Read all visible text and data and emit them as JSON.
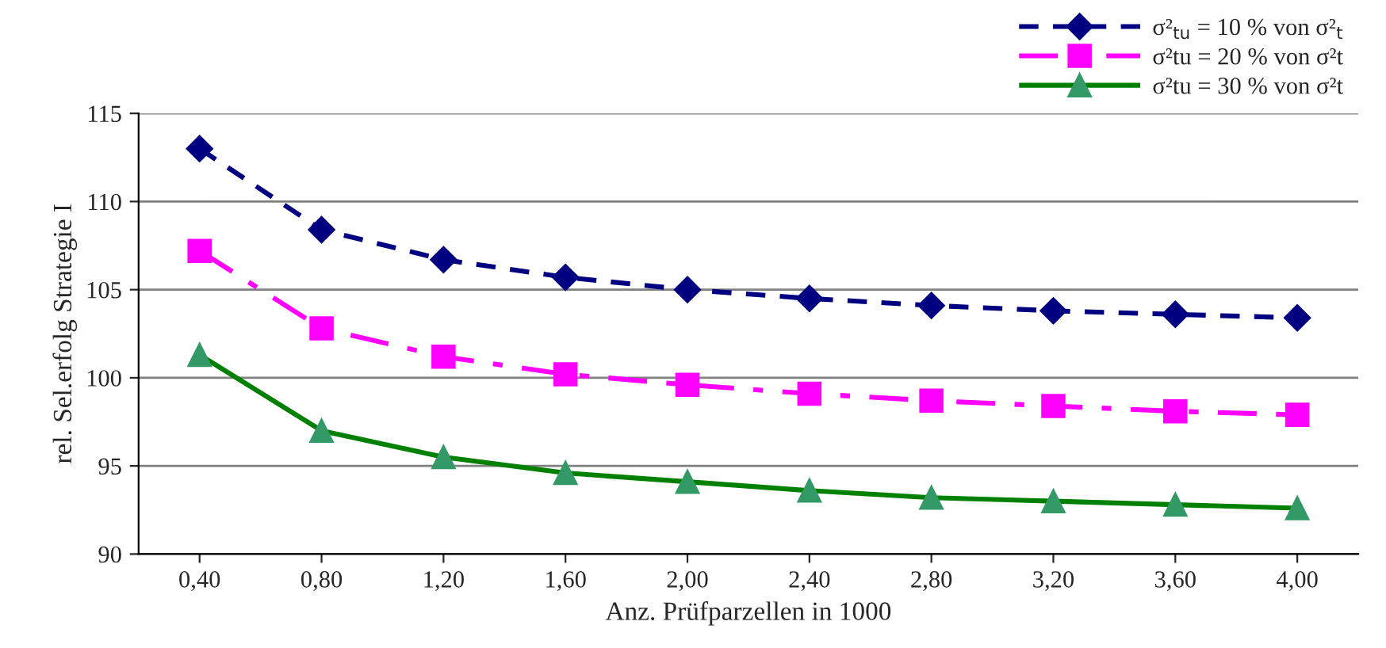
{
  "chart_data": {
    "type": "line",
    "xlabel": "Anz. Prüfparzellen in 1000",
    "ylabel": "rel. Sel.erfolg Strategie I",
    "categories": [
      "0,40",
      "0,80",
      "1,20",
      "1,60",
      "2,00",
      "2,40",
      "2,80",
      "3,20",
      "3,60",
      "4,00"
    ],
    "ylim": [
      90,
      115
    ],
    "yticks": [
      90,
      95,
      100,
      105,
      110,
      115
    ],
    "grid": "y",
    "legend": "top right",
    "series": [
      {
        "name": "σ²$_{tu}$ = 10 % von σ²$_{t}$",
        "color": "#000080",
        "marker": "diamond",
        "line_style": "dashed",
        "values": [
          113.0,
          108.4,
          106.7,
          105.7,
          105.0,
          104.5,
          104.1,
          103.8,
          103.6,
          103.4
        ]
      },
      {
        "name": "σ²tu = 20 % von σ²t",
        "color": "#ff00ff",
        "marker": "square",
        "line_style": "dashdot",
        "values": [
          107.2,
          102.8,
          101.2,
          100.2,
          99.6,
          99.1,
          98.7,
          98.4,
          98.1,
          97.9
        ]
      },
      {
        "name": "σ²tu = 30 % von σ²t",
        "color": "#008000",
        "marker": "triangle",
        "line_style": "solid",
        "values": [
          101.3,
          97.0,
          95.5,
          94.6,
          94.1,
          93.6,
          93.2,
          93.0,
          92.8,
          92.6
        ]
      }
    ]
  }
}
